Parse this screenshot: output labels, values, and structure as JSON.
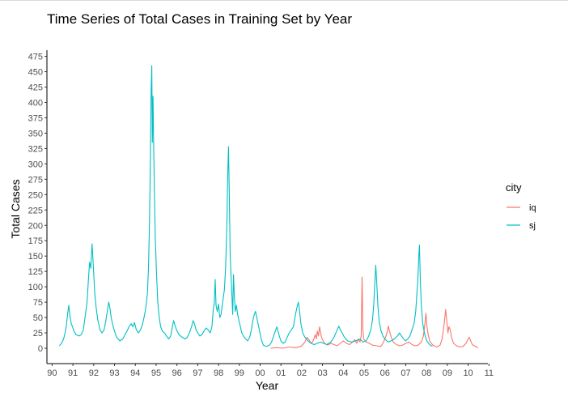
{
  "chart_data": {
    "type": "line",
    "title": "Time Series of Total Cases in Training Set by Year",
    "xlabel": "Year",
    "ylabel": "Total Cases",
    "x_ticks": [
      "90",
      "91",
      "92",
      "93",
      "94",
      "95",
      "96",
      "97",
      "98",
      "99",
      "00",
      "01",
      "02",
      "03",
      "04",
      "05",
      "06",
      "07",
      "08",
      "09",
      "10",
      "11"
    ],
    "y_ticks": [
      0,
      25,
      50,
      75,
      100,
      125,
      150,
      175,
      200,
      225,
      250,
      275,
      300,
      325,
      350,
      375,
      400,
      425,
      450,
      475
    ],
    "xlim": [
      1989.75,
      2010.95
    ],
    "ylim": [
      -25,
      485
    ],
    "grid": false,
    "legend": {
      "title": "city",
      "position": "right"
    },
    "series": [
      {
        "name": "sj",
        "color": "#00BFC4",
        "points": [
          [
            1990.35,
            4
          ],
          [
            1990.45,
            8
          ],
          [
            1990.55,
            15
          ],
          [
            1990.62,
            25
          ],
          [
            1990.68,
            35
          ],
          [
            1990.74,
            55
          ],
          [
            1990.8,
            70
          ],
          [
            1990.86,
            52
          ],
          [
            1990.92,
            40
          ],
          [
            1990.98,
            35
          ],
          [
            1991.05,
            28
          ],
          [
            1991.15,
            22
          ],
          [
            1991.3,
            20
          ],
          [
            1991.4,
            22
          ],
          [
            1991.5,
            30
          ],
          [
            1991.6,
            55
          ],
          [
            1991.68,
            75
          ],
          [
            1991.74,
            110
          ],
          [
            1991.8,
            140
          ],
          [
            1991.86,
            130
          ],
          [
            1991.92,
            170
          ],
          [
            1991.98,
            135
          ],
          [
            1992.05,
            90
          ],
          [
            1992.12,
            65
          ],
          [
            1992.2,
            45
          ],
          [
            1992.3,
            30
          ],
          [
            1992.4,
            25
          ],
          [
            1992.5,
            30
          ],
          [
            1992.58,
            45
          ],
          [
            1992.65,
            60
          ],
          [
            1992.72,
            75
          ],
          [
            1992.78,
            65
          ],
          [
            1992.84,
            50
          ],
          [
            1992.9,
            40
          ],
          [
            1992.98,
            30
          ],
          [
            1993.1,
            18
          ],
          [
            1993.25,
            12
          ],
          [
            1993.4,
            15
          ],
          [
            1993.5,
            22
          ],
          [
            1993.6,
            28
          ],
          [
            1993.7,
            35
          ],
          [
            1993.8,
            40
          ],
          [
            1993.88,
            35
          ],
          [
            1993.96,
            42
          ],
          [
            1994.05,
            30
          ],
          [
            1994.15,
            25
          ],
          [
            1994.25,
            30
          ],
          [
            1994.35,
            40
          ],
          [
            1994.45,
            55
          ],
          [
            1994.52,
            70
          ],
          [
            1994.58,
            90
          ],
          [
            1994.63,
            130
          ],
          [
            1994.68,
            200
          ],
          [
            1994.72,
            300
          ],
          [
            1994.76,
            420
          ],
          [
            1994.79,
            460
          ],
          [
            1994.82,
            335
          ],
          [
            1994.85,
            410
          ],
          [
            1994.88,
            330
          ],
          [
            1994.92,
            250
          ],
          [
            1994.96,
            180
          ],
          [
            1995.02,
            120
          ],
          [
            1995.08,
            75
          ],
          [
            1995.15,
            50
          ],
          [
            1995.22,
            35
          ],
          [
            1995.3,
            28
          ],
          [
            1995.4,
            25
          ],
          [
            1995.5,
            20
          ],
          [
            1995.6,
            15
          ],
          [
            1995.7,
            20
          ],
          [
            1995.78,
            35
          ],
          [
            1995.84,
            45
          ],
          [
            1995.9,
            38
          ],
          [
            1995.98,
            30
          ],
          [
            1996.1,
            22
          ],
          [
            1996.25,
            18
          ],
          [
            1996.4,
            15
          ],
          [
            1996.5,
            18
          ],
          [
            1996.6,
            25
          ],
          [
            1996.7,
            35
          ],
          [
            1996.78,
            45
          ],
          [
            1996.84,
            40
          ],
          [
            1996.92,
            30
          ],
          [
            1997.0,
            25
          ],
          [
            1997.1,
            20
          ],
          [
            1997.2,
            22
          ],
          [
            1997.3,
            28
          ],
          [
            1997.4,
            33
          ],
          [
            1997.5,
            30
          ],
          [
            1997.6,
            25
          ],
          [
            1997.68,
            35
          ],
          [
            1997.74,
            60
          ],
          [
            1997.8,
            75
          ],
          [
            1997.84,
            112
          ],
          [
            1997.88,
            70
          ],
          [
            1997.94,
            60
          ],
          [
            1998.0,
            72
          ],
          [
            1998.06,
            50
          ],
          [
            1998.12,
            55
          ],
          [
            1998.2,
            75
          ],
          [
            1998.28,
            95
          ],
          [
            1998.34,
            130
          ],
          [
            1998.4,
            200
          ],
          [
            1998.44,
            280
          ],
          [
            1998.48,
            328
          ],
          [
            1998.52,
            240
          ],
          [
            1998.56,
            150
          ],
          [
            1998.6,
            120
          ],
          [
            1998.64,
            90
          ],
          [
            1998.68,
            55
          ],
          [
            1998.72,
            120
          ],
          [
            1998.76,
            85
          ],
          [
            1998.8,
            60
          ],
          [
            1998.86,
            70
          ],
          [
            1998.92,
            55
          ],
          [
            1998.98,
            45
          ],
          [
            1999.05,
            35
          ],
          [
            1999.12,
            25
          ],
          [
            1999.2,
            20
          ],
          [
            1999.3,
            15
          ],
          [
            1999.4,
            12
          ],
          [
            1999.5,
            18
          ],
          [
            1999.58,
            30
          ],
          [
            1999.65,
            45
          ],
          [
            1999.72,
            55
          ],
          [
            1999.78,
            60
          ],
          [
            1999.84,
            50
          ],
          [
            1999.9,
            40
          ],
          [
            1999.96,
            30
          ],
          [
            2000.05,
            15
          ],
          [
            2000.15,
            5
          ],
          [
            2000.3,
            3
          ],
          [
            2000.45,
            5
          ],
          [
            2000.55,
            10
          ],
          [
            2000.65,
            20
          ],
          [
            2000.75,
            30
          ],
          [
            2000.8,
            35
          ],
          [
            2000.86,
            28
          ],
          [
            2000.92,
            20
          ],
          [
            2001.0,
            12
          ],
          [
            2001.1,
            8
          ],
          [
            2001.2,
            10
          ],
          [
            2001.3,
            18
          ],
          [
            2001.4,
            25
          ],
          [
            2001.5,
            30
          ],
          [
            2001.6,
            35
          ],
          [
            2001.7,
            55
          ],
          [
            2001.78,
            68
          ],
          [
            2001.84,
            75
          ],
          [
            2001.9,
            60
          ],
          [
            2001.96,
            40
          ],
          [
            2002.05,
            25
          ],
          [
            2002.15,
            18
          ],
          [
            2002.3,
            12
          ],
          [
            2002.45,
            8
          ],
          [
            2002.6,
            6
          ],
          [
            2002.75,
            8
          ],
          [
            2002.9,
            10
          ],
          [
            2003.05,
            8
          ],
          [
            2003.2,
            6
          ],
          [
            2003.4,
            10
          ],
          [
            2003.55,
            18
          ],
          [
            2003.68,
            28
          ],
          [
            2003.78,
            36
          ],
          [
            2003.86,
            30
          ],
          [
            2003.94,
            25
          ],
          [
            2004.05,
            18
          ],
          [
            2004.2,
            12
          ],
          [
            2004.4,
            10
          ],
          [
            2004.6,
            12
          ],
          [
            2004.8,
            15
          ],
          [
            2004.95,
            10
          ],
          [
            2005.1,
            12
          ],
          [
            2005.22,
            20
          ],
          [
            2005.32,
            30
          ],
          [
            2005.4,
            45
          ],
          [
            2005.46,
            70
          ],
          [
            2005.52,
            110
          ],
          [
            2005.56,
            135
          ],
          [
            2005.6,
            110
          ],
          [
            2005.66,
            70
          ],
          [
            2005.72,
            45
          ],
          [
            2005.8,
            30
          ],
          [
            2005.9,
            20
          ],
          [
            2006.0,
            15
          ],
          [
            2006.15,
            10
          ],
          [
            2006.3,
            12
          ],
          [
            2006.45,
            15
          ],
          [
            2006.6,
            20
          ],
          [
            2006.7,
            25
          ],
          [
            2006.8,
            20
          ],
          [
            2006.9,
            15
          ],
          [
            2007.0,
            12
          ],
          [
            2007.1,
            15
          ],
          [
            2007.2,
            20
          ],
          [
            2007.3,
            30
          ],
          [
            2007.4,
            40
          ],
          [
            2007.48,
            60
          ],
          [
            2007.54,
            90
          ],
          [
            2007.58,
            110
          ],
          [
            2007.62,
            145
          ],
          [
            2007.66,
            168
          ],
          [
            2007.7,
            110
          ],
          [
            2007.75,
            70
          ],
          [
            2007.82,
            40
          ],
          [
            2007.9,
            25
          ],
          [
            2007.98,
            15
          ],
          [
            2008.05,
            10
          ],
          [
            2008.15,
            6
          ],
          [
            2008.28,
            3
          ]
        ]
      },
      {
        "name": "iq",
        "color": "#F8766D",
        "points": [
          [
            2000.5,
            0
          ],
          [
            2000.8,
            1
          ],
          [
            2001.1,
            0
          ],
          [
            2001.4,
            2
          ],
          [
            2001.7,
            1
          ],
          [
            2001.95,
            3
          ],
          [
            2002.05,
            6
          ],
          [
            2002.15,
            10
          ],
          [
            2002.25,
            18
          ],
          [
            2002.35,
            14
          ],
          [
            2002.45,
            8
          ],
          [
            2002.55,
            12
          ],
          [
            2002.65,
            22
          ],
          [
            2002.7,
            15
          ],
          [
            2002.75,
            28
          ],
          [
            2002.8,
            20
          ],
          [
            2002.86,
            35
          ],
          [
            2002.92,
            22
          ],
          [
            2002.98,
            15
          ],
          [
            2003.1,
            8
          ],
          [
            2003.25,
            5
          ],
          [
            2003.4,
            8
          ],
          [
            2003.55,
            6
          ],
          [
            2003.7,
            4
          ],
          [
            2003.85,
            8
          ],
          [
            2004.0,
            12
          ],
          [
            2004.15,
            8
          ],
          [
            2004.3,
            6
          ],
          [
            2004.45,
            10
          ],
          [
            2004.55,
            14
          ],
          [
            2004.65,
            8
          ],
          [
            2004.72,
            15
          ],
          [
            2004.8,
            10
          ],
          [
            2004.86,
            20
          ],
          [
            2004.9,
            116
          ],
          [
            2004.94,
            30
          ],
          [
            2004.98,
            15
          ],
          [
            2005.1,
            10
          ],
          [
            2005.25,
            8
          ],
          [
            2005.4,
            5
          ],
          [
            2005.6,
            4
          ],
          [
            2005.8,
            3
          ],
          [
            2005.9,
            8
          ],
          [
            2006.0,
            15
          ],
          [
            2006.1,
            25
          ],
          [
            2006.16,
            36
          ],
          [
            2006.22,
            28
          ],
          [
            2006.3,
            18
          ],
          [
            2006.4,
            10
          ],
          [
            2006.55,
            6
          ],
          [
            2006.7,
            4
          ],
          [
            2006.85,
            5
          ],
          [
            2007.0,
            8
          ],
          [
            2007.15,
            10
          ],
          [
            2007.3,
            6
          ],
          [
            2007.45,
            4
          ],
          [
            2007.6,
            5
          ],
          [
            2007.75,
            10
          ],
          [
            2007.85,
            20
          ],
          [
            2007.92,
            40
          ],
          [
            2007.97,
            57
          ],
          [
            2008.02,
            35
          ],
          [
            2008.08,
            22
          ],
          [
            2008.15,
            12
          ],
          [
            2008.3,
            5
          ],
          [
            2008.5,
            2
          ],
          [
            2008.65,
            5
          ],
          [
            2008.75,
            15
          ],
          [
            2008.85,
            40
          ],
          [
            2008.92,
            63
          ],
          [
            2008.97,
            45
          ],
          [
            2009.03,
            25
          ],
          [
            2009.08,
            35
          ],
          [
            2009.14,
            30
          ],
          [
            2009.2,
            18
          ],
          [
            2009.3,
            8
          ],
          [
            2009.45,
            4
          ],
          [
            2009.6,
            2
          ],
          [
            2009.75,
            3
          ],
          [
            2009.9,
            8
          ],
          [
            2010.0,
            15
          ],
          [
            2010.05,
            18
          ],
          [
            2010.12,
            12
          ],
          [
            2010.2,
            6
          ],
          [
            2010.3,
            4
          ],
          [
            2010.4,
            2
          ],
          [
            2010.48,
            1
          ]
        ]
      }
    ]
  }
}
